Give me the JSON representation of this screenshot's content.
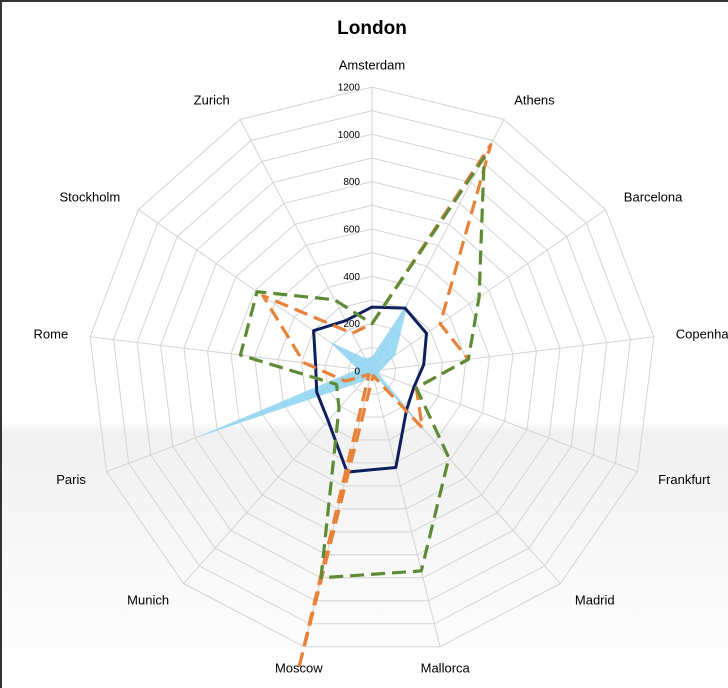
{
  "chart_data": {
    "type": "radar",
    "title": "London",
    "categories": [
      "Amsterdam",
      "Athens",
      "Barcelona",
      "Copenhagen",
      "Frankfurt",
      "Madrid",
      "Mallorca",
      "Moscow",
      "Munich",
      "Paris",
      "Rome",
      "Stockholm",
      "Zurich"
    ],
    "r_ticks": [
      0,
      200,
      400,
      600,
      800,
      1000,
      1200
    ],
    "rlim": [
      0,
      1200
    ],
    "grid": true,
    "legend": "none",
    "series": [
      {
        "style": "area",
        "color": "#8ed3f2",
        "values": [
          60,
          330,
          120,
          40,
          30,
          380,
          10,
          20,
          60,
          800,
          60,
          220,
          60
        ]
      },
      {
        "style": "solid",
        "color": "#0d1f5c",
        "values": [
          270,
          300,
          280,
          220,
          190,
          220,
          420,
          440,
          280,
          250,
          240,
          300,
          240
        ]
      },
      {
        "style": "dashed",
        "color": "#e8823a",
        "values": [
          200,
          1080,
          350,
          410,
          200,
          320,
          20,
          1300,
          20,
          120,
          290,
          560,
          180
        ]
      },
      {
        "style": "dashed",
        "color": "#5e8c36",
        "values": [
          200,
          1020,
          550,
          410,
          200,
          490,
          870,
          900,
          210,
          160,
          560,
          590,
          340
        ]
      }
    ]
  }
}
